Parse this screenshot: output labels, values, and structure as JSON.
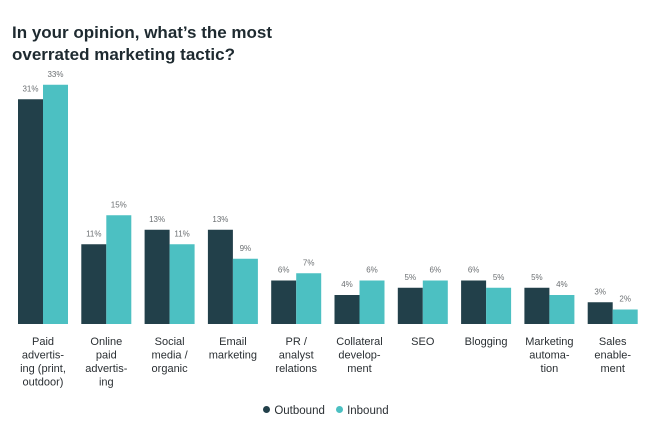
{
  "chart_data": {
    "type": "bar",
    "title": "In your opinion, what’s the most overrated marketing tactic?",
    "xlabel": "",
    "ylabel": "",
    "ylim": [
      0,
      35
    ],
    "unit": "%",
    "categories": [
      "Paid advertis- ing (print, outdoor)",
      "Online paid advertis- ing",
      "Social media / organic",
      "Email marketing",
      "PR / analyst relations",
      "Collateral develop- ment",
      "SEO",
      "Blogging",
      "Marketing automa- tion",
      "Sales enable- ment"
    ],
    "category_lines": [
      [
        "Paid",
        "advertis-",
        "ing (print,",
        "outdoor)"
      ],
      [
        "Online",
        "paid",
        "advertis-",
        "ing"
      ],
      [
        "Social",
        "media /",
        "organic"
      ],
      [
        "Email",
        "marketing"
      ],
      [
        "PR /",
        "analyst",
        "relations"
      ],
      [
        "Collateral",
        "develop-",
        "ment"
      ],
      [
        "SEO"
      ],
      [
        "Blogging"
      ],
      [
        "Marketing",
        "automa-",
        "tion"
      ],
      [
        "Sales",
        "enable-",
        "ment"
      ]
    ],
    "series": [
      {
        "name": "Outbound",
        "color": "#22404a",
        "values": [
          31,
          11,
          13,
          13,
          6,
          4,
          5,
          6,
          5,
          3
        ]
      },
      {
        "name": "Inbound",
        "color": "#4cc0c2",
        "values": [
          33,
          15,
          11,
          9,
          7,
          6,
          6,
          5,
          4,
          2
        ]
      }
    ],
    "legend_position": "bottom-center"
  }
}
